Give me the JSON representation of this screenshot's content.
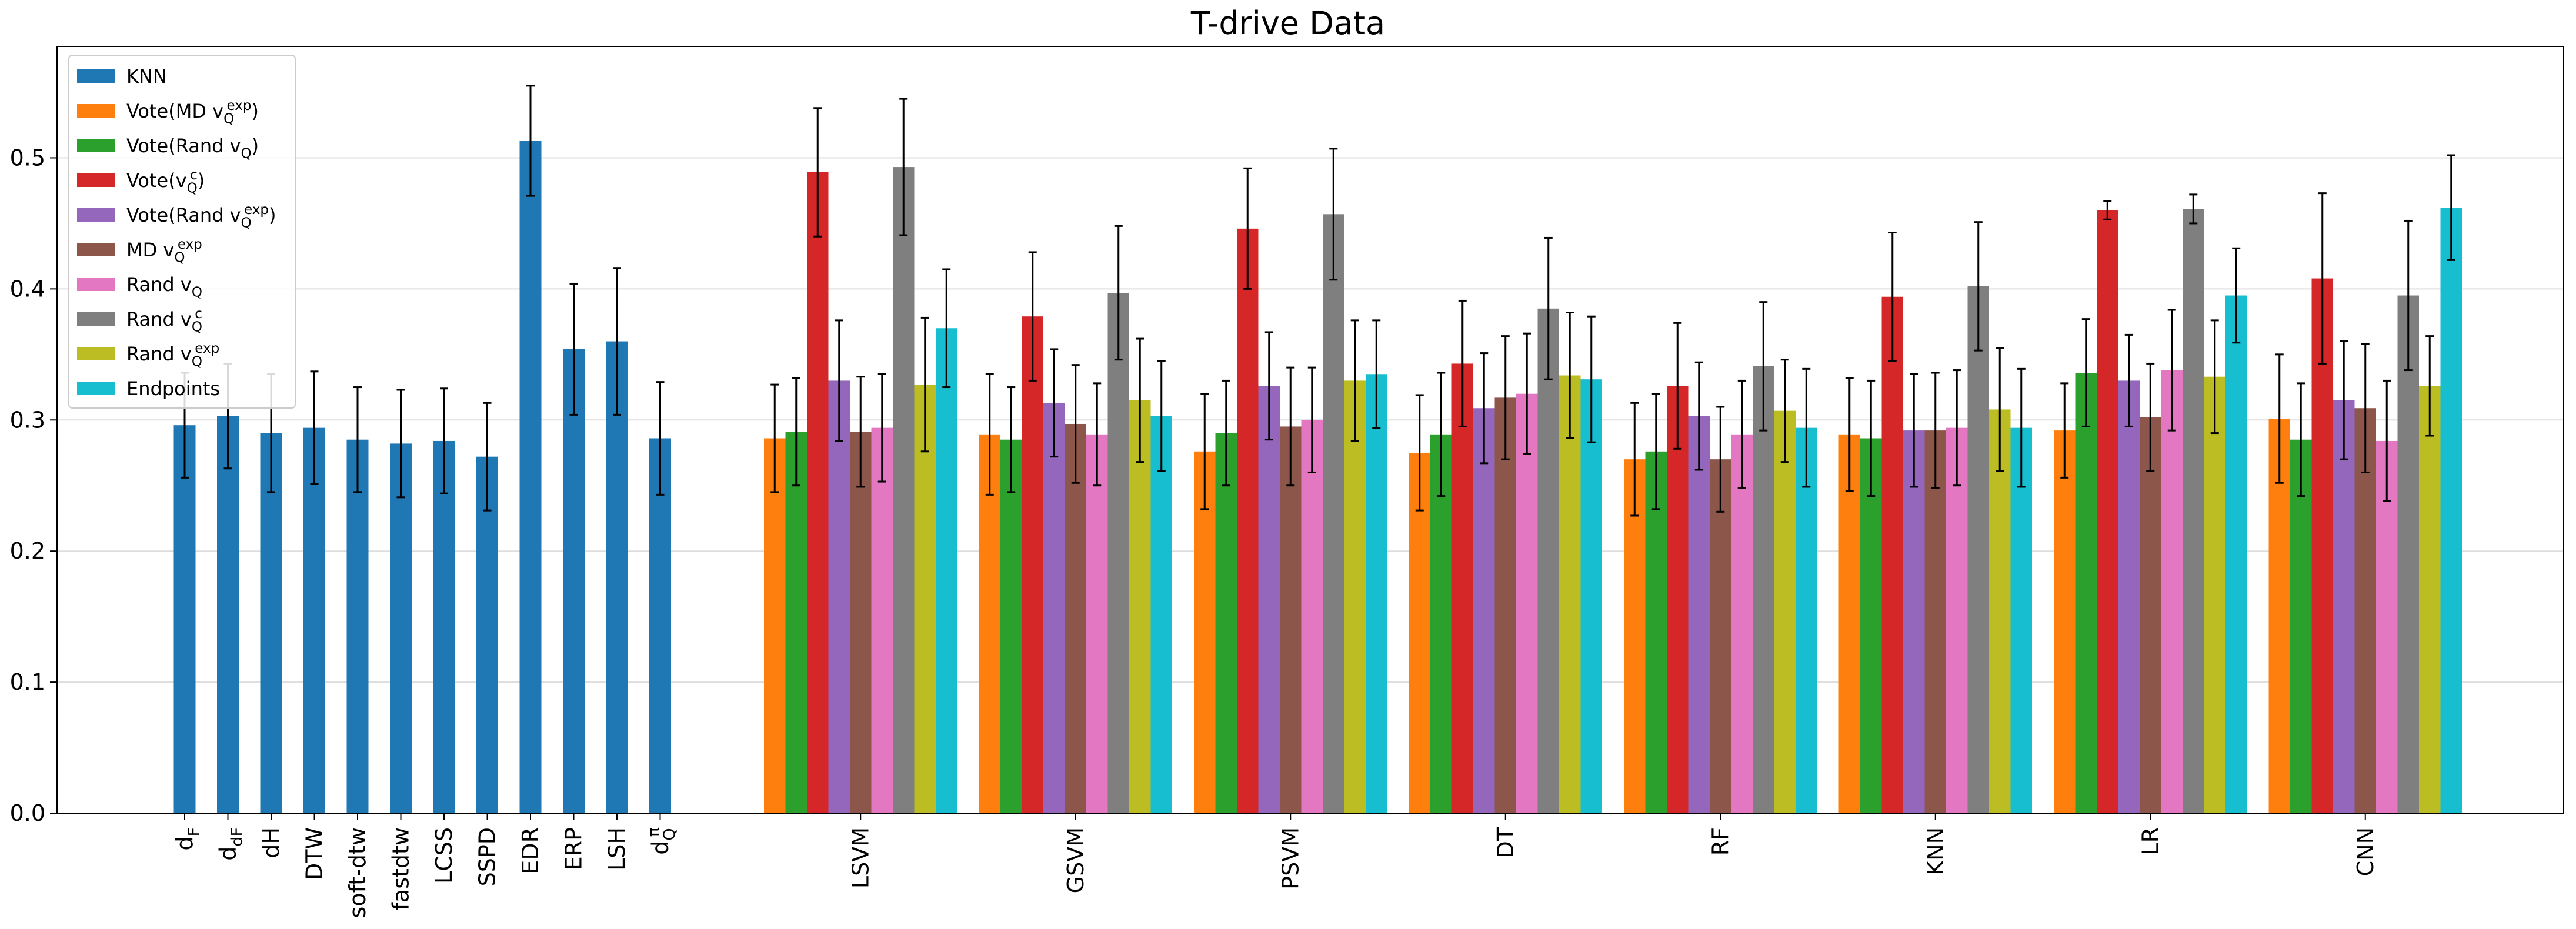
{
  "chart_data": {
    "type": "bar",
    "title": "T-drive Data",
    "xlabel": "",
    "ylabel": "",
    "ylim": [
      0,
      0.585
    ],
    "yticks": [
      0.0,
      0.1,
      0.2,
      0.3,
      0.4,
      0.5
    ],
    "ytick_labels": [
      "0.0",
      "0.1",
      "0.2",
      "0.3",
      "0.4",
      "0.5"
    ],
    "grid": "horizontal",
    "legend_position": "top-left",
    "error_bars": true,
    "series": [
      {
        "name": "KNN",
        "color": "#1f77b4"
      },
      {
        "name": "Vote(MD v_Q^exp)",
        "color": "#ff7f0e"
      },
      {
        "name": "Vote(Rand v_Q)",
        "color": "#2ca02c"
      },
      {
        "name": "Vote(v_Q^c)",
        "color": "#d62728"
      },
      {
        "name": "Vote(Rand v_Q^exp)",
        "color": "#9467bd"
      },
      {
        "name": "MD v_Q^exp",
        "color": "#8c564b"
      },
      {
        "name": "Rand v_Q",
        "color": "#e377c2"
      },
      {
        "name": "Rand v_Q^c",
        "color": "#7f7f7f"
      },
      {
        "name": "Rand v_Q^exp",
        "color": "#bcbd22"
      },
      {
        "name": "Endpoints",
        "color": "#17becf"
      }
    ],
    "baselines": {
      "labels": [
        "d_F",
        "d_dF",
        "dH",
        "DTW",
        "soft-dtw",
        "fastdtw",
        "LCSS",
        "SSPD",
        "EDR",
        "ERP",
        "LSH",
        "d_Q^pi"
      ],
      "values": [
        0.296,
        0.303,
        0.29,
        0.294,
        0.285,
        0.282,
        0.284,
        0.272,
        0.513,
        0.354,
        0.36,
        0.286
      ],
      "errors": [
        0.04,
        0.04,
        0.045,
        0.043,
        0.04,
        0.041,
        0.04,
        0.041,
        0.042,
        0.05,
        0.056,
        0.043
      ]
    },
    "groups": [
      {
        "label": "LSVM",
        "values": [
          0.286,
          0.291,
          0.489,
          0.33,
          0.291,
          0.294,
          0.493,
          0.327,
          0.37
        ],
        "errors": [
          0.041,
          0.041,
          0.049,
          0.046,
          0.042,
          0.041,
          0.052,
          0.051,
          0.045
        ]
      },
      {
        "label": "GSVM",
        "values": [
          0.289,
          0.285,
          0.379,
          0.313,
          0.297,
          0.289,
          0.397,
          0.315,
          0.303
        ],
        "errors": [
          0.046,
          0.04,
          0.049,
          0.041,
          0.045,
          0.039,
          0.051,
          0.047,
          0.042
        ]
      },
      {
        "label": "PSVM",
        "values": [
          0.276,
          0.29,
          0.446,
          0.326,
          0.295,
          0.3,
          0.457,
          0.33,
          0.335
        ],
        "errors": [
          0.044,
          0.04,
          0.046,
          0.041,
          0.045,
          0.04,
          0.05,
          0.046,
          0.041
        ]
      },
      {
        "label": "DT",
        "values": [
          0.275,
          0.289,
          0.343,
          0.309,
          0.317,
          0.32,
          0.385,
          0.334,
          0.331
        ],
        "errors": [
          0.044,
          0.047,
          0.048,
          0.042,
          0.047,
          0.046,
          0.054,
          0.048,
          0.048
        ]
      },
      {
        "label": "RF",
        "values": [
          0.27,
          0.276,
          0.326,
          0.303,
          0.27,
          0.289,
          0.341,
          0.307,
          0.294
        ],
        "errors": [
          0.043,
          0.044,
          0.048,
          0.041,
          0.04,
          0.041,
          0.049,
          0.039,
          0.045
        ]
      },
      {
        "label": "KNN",
        "values": [
          0.289,
          0.286,
          0.394,
          0.292,
          0.292,
          0.294,
          0.402,
          0.308,
          0.294
        ],
        "errors": [
          0.043,
          0.044,
          0.049,
          0.043,
          0.044,
          0.044,
          0.049,
          0.047,
          0.045
        ]
      },
      {
        "label": "LR",
        "values": [
          0.292,
          0.336,
          0.46,
          0.33,
          0.302,
          0.338,
          0.461,
          0.333,
          0.395
        ],
        "errors": [
          0.036,
          0.041,
          0.007,
          0.035,
          0.041,
          0.046,
          0.011,
          0.043,
          0.036
        ]
      },
      {
        "label": "CNN",
        "values": [
          0.301,
          0.285,
          0.408,
          0.315,
          0.309,
          0.284,
          0.395,
          0.326,
          0.462
        ],
        "errors": [
          0.049,
          0.043,
          0.065,
          0.045,
          0.049,
          0.046,
          0.057,
          0.038,
          0.04
        ]
      }
    ]
  }
}
